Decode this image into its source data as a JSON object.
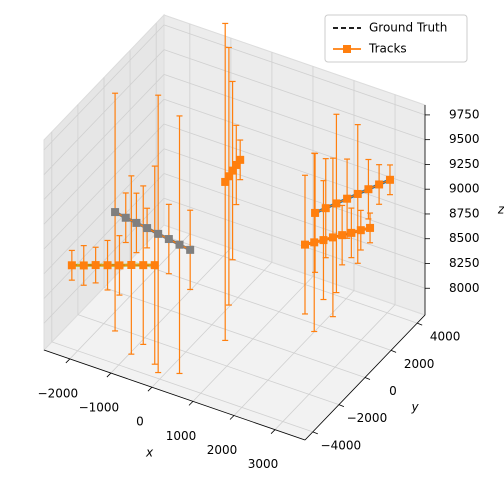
{
  "chart_data": {
    "type": "scatter3d",
    "xlabel": "x",
    "ylabel": "y",
    "zlabel": "z",
    "xlim": [
      -2630,
      3730
    ],
    "ylim": [
      -4600,
      4600
    ],
    "zlim": [
      7730,
      9850
    ],
    "xticks": [
      {
        "value": -2000,
        "label": "−2000"
      },
      {
        "value": -1000,
        "label": "−1000"
      },
      0,
      1000,
      2000,
      3000
    ],
    "yticks": [
      {
        "value": -4000,
        "label": "−4000"
      },
      {
        "value": -2000,
        "label": "−2000"
      },
      0,
      2000,
      4000
    ],
    "zticks": [
      8000,
      8250,
      8500,
      8750,
      9000,
      9250,
      9500,
      9750
    ],
    "grid": true,
    "legend_position": "upper right",
    "legend": [
      {
        "name": "Ground Truth",
        "color": "#000000",
        "style": "dashed"
      },
      {
        "name": "Tracks",
        "color": "#ff7f0e",
        "style": "solid-square"
      }
    ],
    "errorbar_color": "#ff7f0e",
    "tracks": [
      {
        "color": "#bcbd22",
        "marker_color": "#ff7f0e",
        "x": [
          -2460,
          -2170,
          -1880,
          -1590,
          -1300,
          -1010,
          -720,
          -440
        ],
        "y": [
          -3000,
          -3000,
          -3000,
          -3000,
          -3000,
          -3000,
          -3000,
          -3000
        ],
        "z": [
          8390,
          8430,
          8475,
          8515,
          8555,
          8600,
          8640,
          8680
        ],
        "z_err": [
          150,
          200,
          180,
          250,
          300,
          900,
          800,
          1000
        ]
      },
      {
        "color": "#7f7f7f",
        "marker_color": "#7f7f7f",
        "x": [
          -2360,
          -2100,
          -1840,
          -1580,
          -1310,
          -1050,
          -790,
          -530
        ],
        "y": [
          0,
          0,
          0,
          0,
          0,
          0,
          0,
          0
        ],
        "z": [
          8530,
          8510,
          8495,
          8480,
          8460,
          8445,
          8425,
          8410
        ],
        "z_err": [
          1200,
          250,
          300,
          200,
          1400,
          350,
          1300,
          400
        ]
      },
      {
        "color": "#17becf",
        "marker_color": "#ff7f0e",
        "x": [
          -630,
          -540,
          -450,
          -360,
          -265
        ],
        "y": [
          3000,
          3000,
          3000,
          3000,
          3000
        ],
        "z": [
          8670,
          8740,
          8810,
          8880,
          8945
        ],
        "z_err": [
          1600,
          1300,
          900,
          400,
          200
        ]
      },
      {
        "color": "#1f77b4",
        "marker_color": "#ff7f0e",
        "x": [
          1560,
          1820,
          2080,
          2340,
          2600,
          2860,
          3120,
          3385
        ],
        "y": [
          3000,
          3000,
          3000,
          3000,
          3000,
          3000,
          3000,
          3000
        ],
        "z": [
          8670,
          8755,
          8840,
          8925,
          9010,
          9095,
          9180,
          9265
        ],
        "z_err": [
          600,
          500,
          900,
          400,
          700,
          300,
          200,
          150
        ]
      },
      {
        "color": "#ff7f0e",
        "marker_color": "#ff7f0e",
        "x": [
          1950,
          2175,
          2400,
          2630,
          2855,
          3080,
          3310,
          3535
        ],
        "y": [
          1000,
          1000,
          1000,
          1000,
          1000,
          1000,
          1000,
          1000
        ],
        "z": [
          8680,
          8735,
          8790,
          8850,
          8905,
          8960,
          9020,
          9075
        ],
        "z_err": [
          700,
          900,
          600,
          800,
          300,
          250,
          200,
          150
        ]
      }
    ]
  }
}
